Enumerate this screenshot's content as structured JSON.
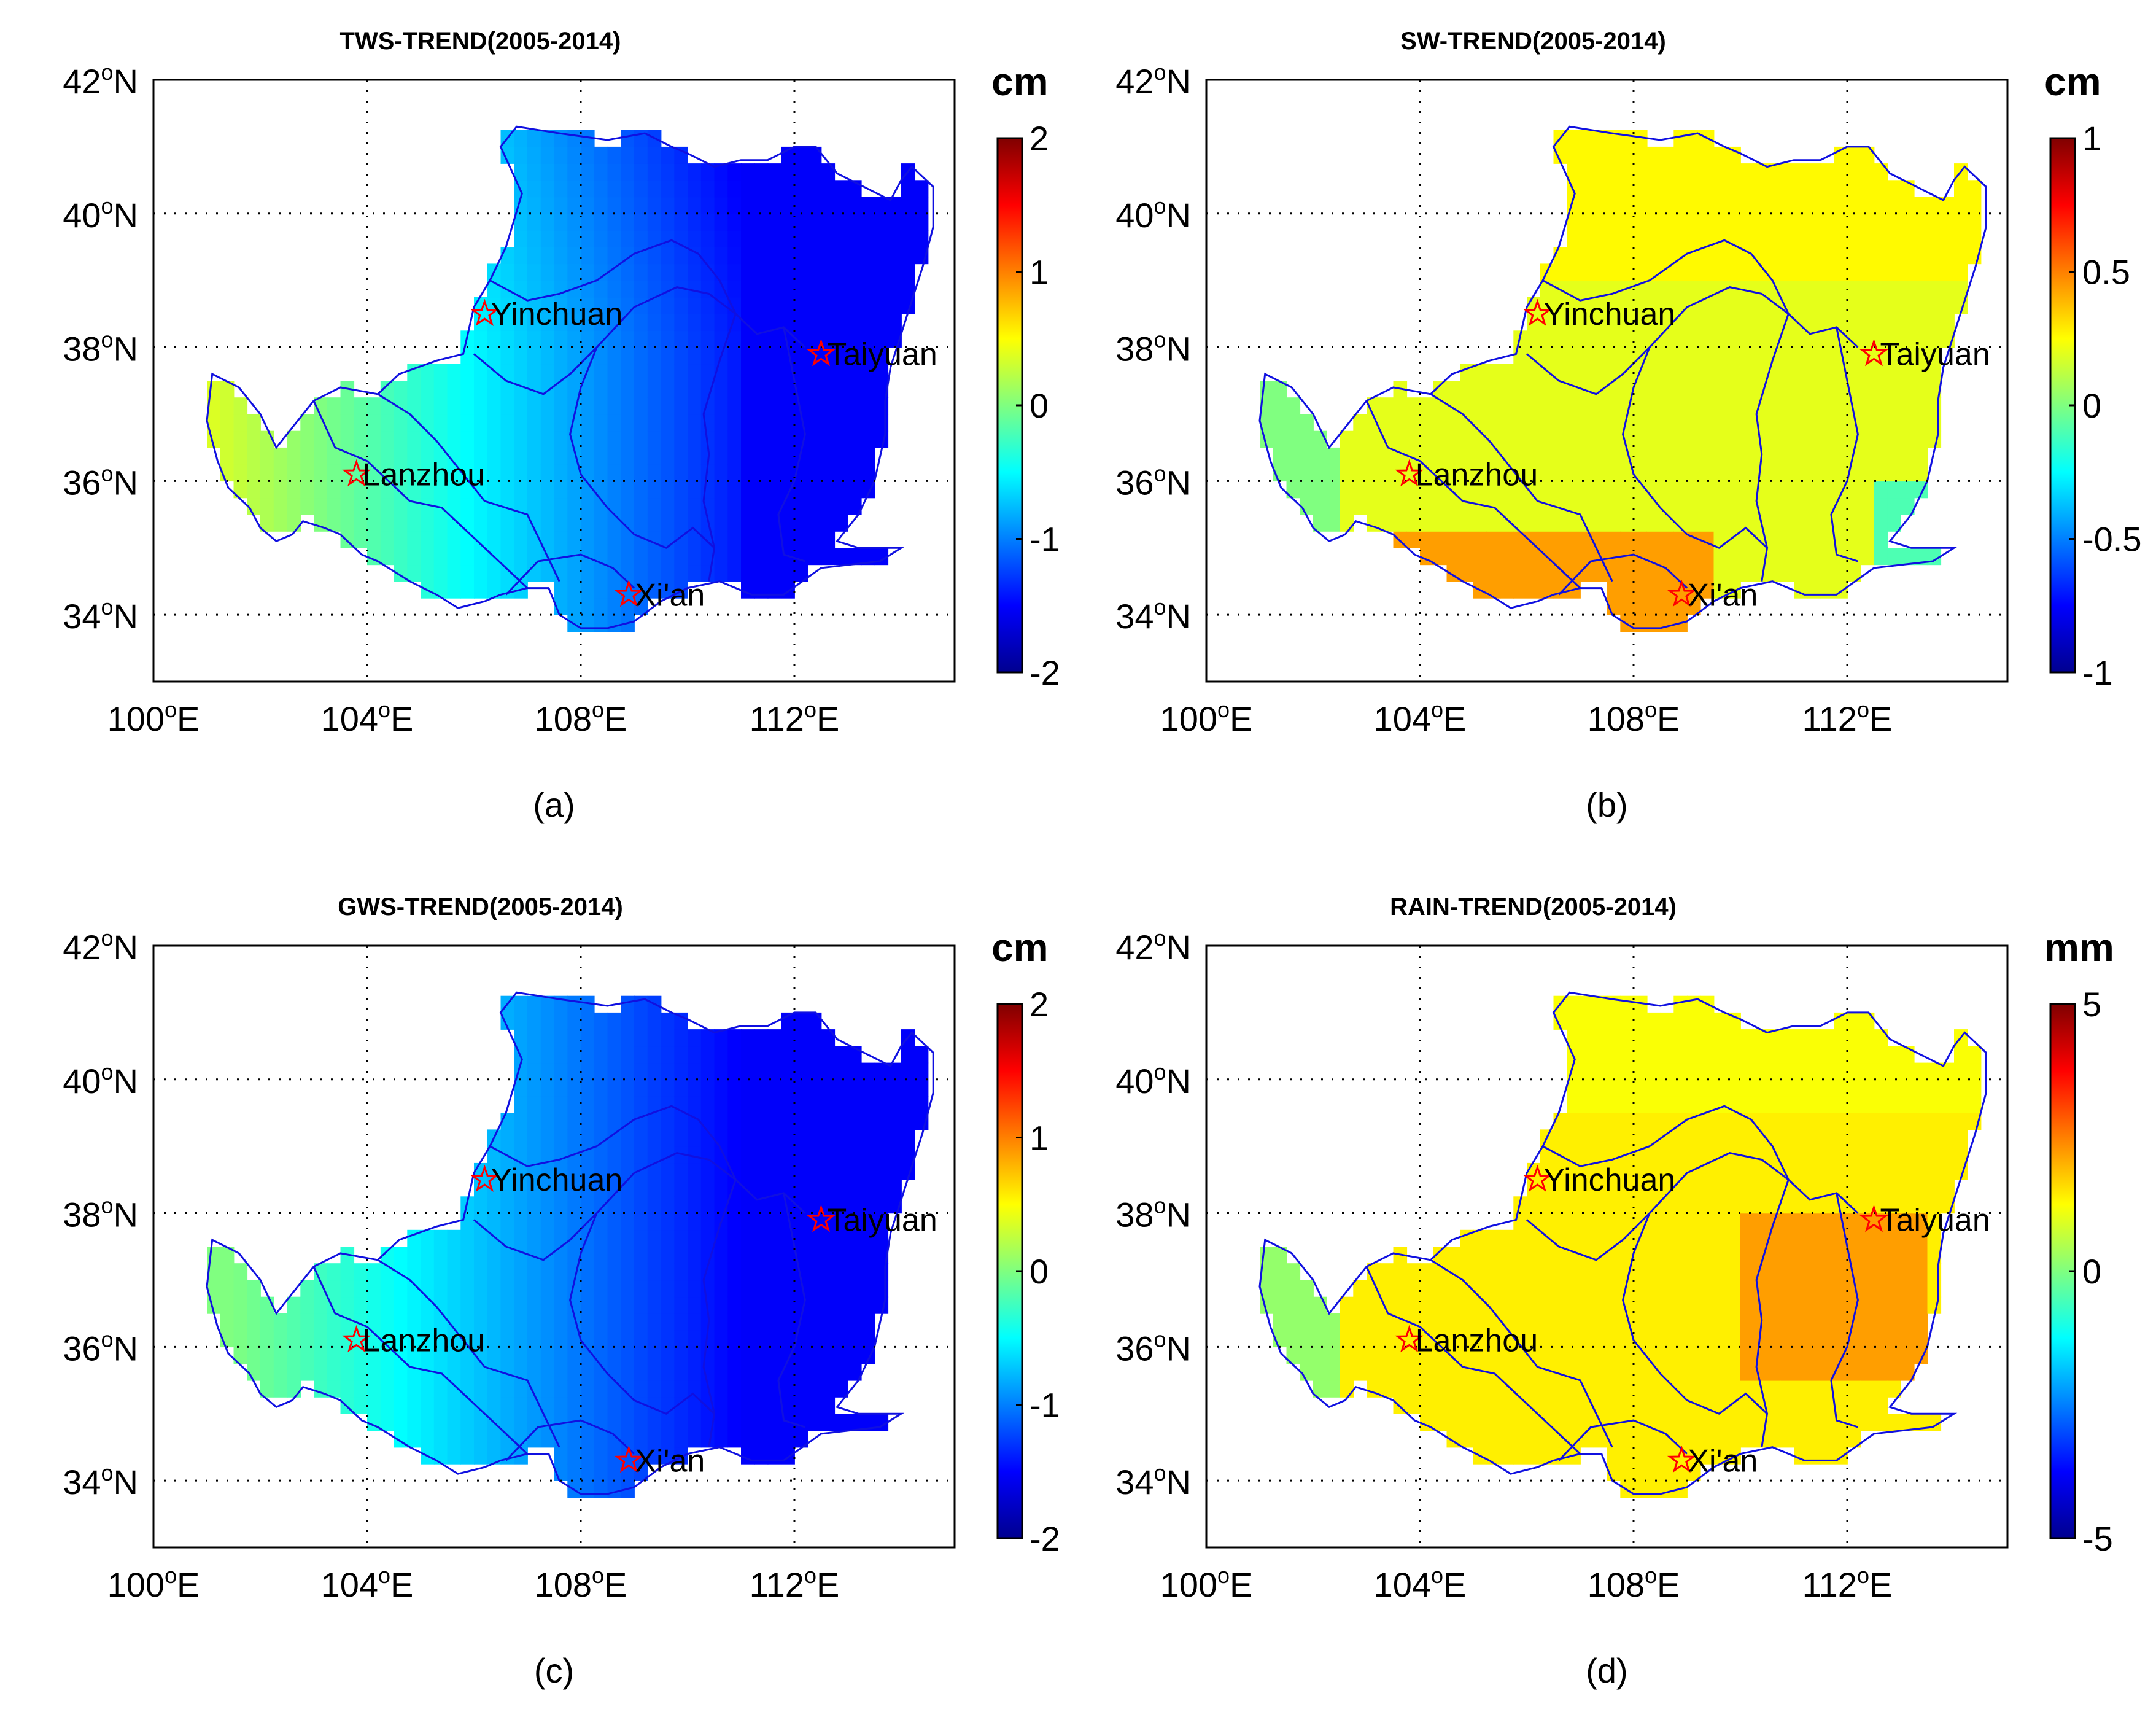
{
  "panels": [
    {
      "id": "a",
      "title": "TWS-TREND(2005-2014)",
      "caption": "(a)",
      "unit": "cm",
      "colorbar_ticks": [
        "2",
        "1",
        "0",
        "-1",
        "-2"
      ],
      "colorbar_range": [
        -2,
        2
      ],
      "field": "tws",
      "lat_labels": [
        "42",
        "40",
        "38",
        "36",
        "34"
      ],
      "lon_labels": [
        "100",
        "104",
        "108",
        "112"
      ]
    },
    {
      "id": "b",
      "title": "SW-TREND(2005-2014)",
      "caption": "(b)",
      "unit": "cm",
      "colorbar_ticks": [
        "1",
        "0.5",
        "0",
        "-0.5",
        "-1"
      ],
      "colorbar_range": [
        -1,
        1
      ],
      "field": "sw",
      "lat_labels": [
        "42",
        "40",
        "38",
        "36",
        "34"
      ],
      "lon_labels": [
        "100",
        "104",
        "108",
        "112"
      ]
    },
    {
      "id": "c",
      "title": "GWS-TREND(2005-2014)",
      "caption": "(c)",
      "unit": "cm",
      "colorbar_ticks": [
        "2",
        "1",
        "0",
        "-1",
        "-2"
      ],
      "colorbar_range": [
        -2,
        2
      ],
      "field": "gws",
      "lat_labels": [
        "42",
        "40",
        "38",
        "36",
        "34"
      ],
      "lon_labels": [
        "100",
        "104",
        "108",
        "112"
      ]
    },
    {
      "id": "d",
      "title": "RAIN-TREND(2005-2014)",
      "caption": "(d)",
      "unit": "mm",
      "colorbar_ticks": [
        "5",
        "0",
        "-5"
      ],
      "colorbar_range": [
        -5,
        5
      ],
      "field": "rain",
      "lat_labels": [
        "42",
        "40",
        "38",
        "36",
        "34"
      ],
      "lon_labels": [
        "100",
        "104",
        "108",
        "112"
      ]
    }
  ],
  "axis": {
    "lon_range": [
      100,
      115
    ],
    "lat_range": [
      33,
      42
    ],
    "lat_suffix": "N",
    "lon_suffix": "E",
    "degree_mark": "o"
  },
  "cities": [
    {
      "name": "Yinchuan",
      "lon": 106.2,
      "lat": 38.5
    },
    {
      "name": "Taiyuan",
      "lon": 112.5,
      "lat": 37.9
    },
    {
      "name": "Lanzhou",
      "lon": 103.8,
      "lat": 36.1
    },
    {
      "name": "Xi'an",
      "lon": 108.9,
      "lat": 34.3
    }
  ],
  "colors": {
    "boundary": "#1010e0",
    "city_marker": "#ff0000",
    "grid": "#000000"
  },
  "region_outline_lonlat": [
    [
      101.0,
      37.8
    ],
    [
      101.3,
      37.9
    ],
    [
      101.6,
      37.5
    ],
    [
      102.0,
      37.2
    ],
    [
      102.3,
      36.9
    ],
    [
      102.5,
      36.5
    ],
    [
      102.8,
      36.2
    ],
    [
      103.0,
      35.8
    ],
    [
      102.9,
      35.5
    ],
    [
      102.6,
      35.2
    ],
    [
      102.3,
      35.0
    ],
    [
      102.0,
      35.2
    ],
    [
      101.7,
      35.5
    ],
    [
      101.3,
      35.6
    ],
    [
      101.0,
      35.8
    ],
    [
      100.9,
      36.2
    ],
    [
      101.1,
      36.6
    ],
    [
      101.0,
      37.2
    ],
    [
      101.0,
      37.8
    ]
  ]
}
